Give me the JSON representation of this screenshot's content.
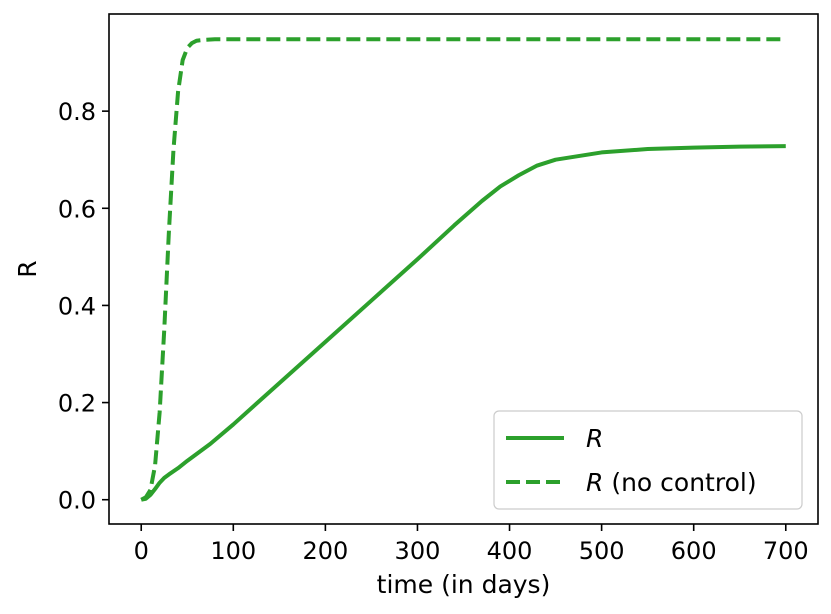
{
  "chart_data": {
    "type": "line",
    "xlabel": "time (in days)",
    "ylabel": "R",
    "xlim": [
      -35,
      735
    ],
    "ylim": [
      -0.05,
      1.0
    ],
    "xticks": [
      0,
      100,
      200,
      300,
      400,
      500,
      600,
      700
    ],
    "xtick_labels": [
      "0",
      "100",
      "200",
      "300",
      "400",
      "500",
      "600",
      "700"
    ],
    "yticks": [
      0.0,
      0.2,
      0.4,
      0.6,
      0.8
    ],
    "ytick_labels": [
      "0.0",
      "0.2",
      "0.4",
      "0.6",
      "0.8"
    ],
    "grid": false,
    "legend_position": "lower right",
    "color": "#2ca02c",
    "series": [
      {
        "name": "R",
        "legend_math": "R",
        "legend_suffix": "",
        "style": "solid",
        "x": [
          0,
          5,
          10,
          15,
          20,
          25,
          30,
          40,
          50,
          75,
          100,
          150,
          200,
          250,
          300,
          340,
          370,
          390,
          410,
          430,
          450,
          500,
          550,
          600,
          650,
          700
        ],
        "y": [
          0.0,
          0.002,
          0.01,
          0.022,
          0.035,
          0.045,
          0.052,
          0.065,
          0.08,
          0.115,
          0.155,
          0.24,
          0.325,
          0.41,
          0.495,
          0.565,
          0.615,
          0.645,
          0.668,
          0.688,
          0.7,
          0.715,
          0.722,
          0.725,
          0.727,
          0.728
        ]
      },
      {
        "name": "R (no control)",
        "legend_math": "R",
        "legend_suffix": " (no control)",
        "style": "dashed",
        "x": [
          0,
          5,
          10,
          15,
          20,
          25,
          30,
          35,
          40,
          45,
          50,
          55,
          60,
          70,
          80,
          100,
          200,
          300,
          400,
          500,
          600,
          700
        ],
        "y": [
          0.0,
          0.005,
          0.02,
          0.07,
          0.18,
          0.35,
          0.55,
          0.72,
          0.84,
          0.905,
          0.93,
          0.94,
          0.945,
          0.947,
          0.948,
          0.948,
          0.948,
          0.948,
          0.948,
          0.948,
          0.948,
          0.948
        ]
      }
    ]
  }
}
